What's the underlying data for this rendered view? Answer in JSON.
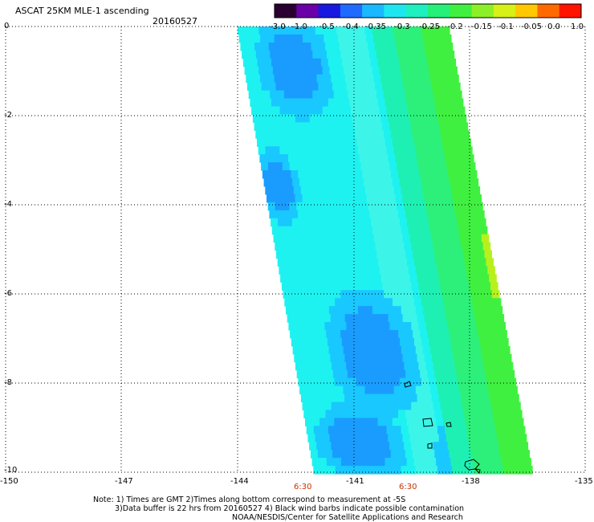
{
  "header": {
    "title": "ASCAT 25KM MLE-1 ascending",
    "date": "20160527"
  },
  "colorbar": {
    "colors": [
      "#2a0030",
      "#6a00a8",
      "#1818e0",
      "#1f6bff",
      "#19b8ff",
      "#1ee6f0",
      "#1ef0c0",
      "#24f07a",
      "#40f040",
      "#8cf028",
      "#d6f018",
      "#ffc800",
      "#ff6a00",
      "#ff1400"
    ],
    "ticks": [
      "-3.0",
      "-1.0",
      "-0.5",
      "-0.4",
      "-0.35",
      "-0.3",
      "-0.25",
      "-0.2",
      "-0.15",
      "-0.1",
      "-0.05",
      "0.0",
      "1.0"
    ]
  },
  "map": {
    "y_axis": {
      "ticks": [
        "0",
        "-2",
        "-4",
        "-6",
        "-8",
        "-10"
      ]
    },
    "x_axis": {
      "ticks": [
        "-150",
        "-147",
        "-144",
        "-141",
        "-138",
        "-135"
      ]
    },
    "time_labels": [
      "6:30",
      "6:30"
    ],
    "palette": {
      "cyan": "#1ef2f0",
      "cyan_light": "#3cf5e8",
      "blue_mid": "#19c8ff",
      "blue_deep": "#1a9cff",
      "aqua_green": "#1ef0b4",
      "green": "#2cf07a",
      "green_bright": "#40f040",
      "yellow_green": "#b8f01e",
      "time_color": "#c83200"
    }
  },
  "notes": {
    "line1": "Note: 1) Times are GMT 2)Times along bottom correspond to measurement at -5S",
    "line2": "3)Data buffer is 22 hrs from 20160527 4) Black wind barbs indicate possible contamination",
    "line3": "NOAA/NESDIS/Center for Satellite Applications and Research"
  }
}
